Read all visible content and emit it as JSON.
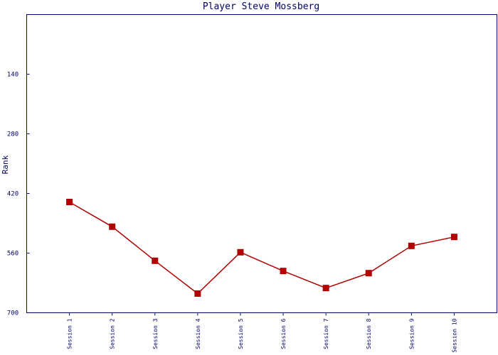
{
  "chart_data": {
    "type": "line",
    "title": "Player Steve Mossberg",
    "y_label": "Rank",
    "categories": [
      "Session 1",
      "Session 2",
      "Session 3",
      "Session 4",
      "Session 5",
      "Session 6",
      "Session 7",
      "Session 8",
      "Session 9",
      "Session 10"
    ],
    "series": [
      {
        "name": "Rank",
        "color": "#b00000",
        "values": [
          440,
          498,
          578,
          655,
          558,
          602,
          642,
          607,
          543,
          522
        ]
      }
    ],
    "ylim": [
      700,
      0
    ],
    "yticks": [
      140,
      280,
      420,
      560,
      700
    ],
    "grid": false
  }
}
